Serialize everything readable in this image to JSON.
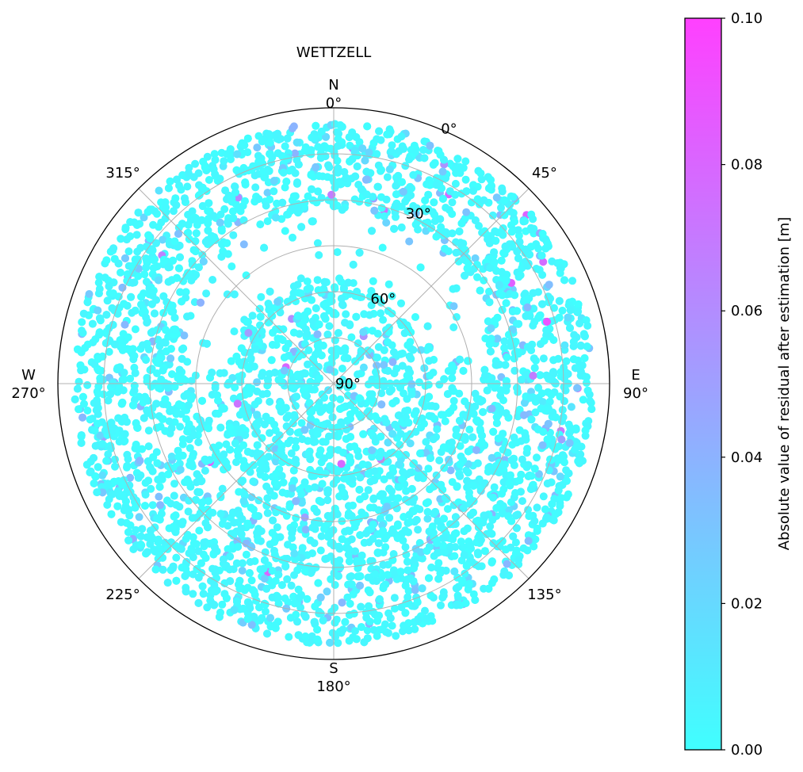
{
  "chart_data": {
    "type": "scatter",
    "subtype": "polar skyplot",
    "title": "WETTZELL",
    "theta_direction": "clockwise",
    "theta_zero": "north",
    "azimuth_ticks": [
      {
        "deg": 0,
        "text": "0°",
        "compass": "N"
      },
      {
        "deg": 45,
        "text": "45°"
      },
      {
        "deg": 90,
        "text": "90°",
        "compass": "E"
      },
      {
        "deg": 135,
        "text": "135°"
      },
      {
        "deg": 180,
        "text": "180°",
        "compass": "S"
      },
      {
        "deg": 225,
        "text": "225°"
      },
      {
        "deg": 270,
        "text": "270°",
        "compass": "W"
      },
      {
        "deg": 315,
        "text": "315°"
      }
    ],
    "elevation_ticks": [
      {
        "deg": 0,
        "text": "0°"
      },
      {
        "deg": 30,
        "text": "30°"
      },
      {
        "deg": 60,
        "text": "60°"
      },
      {
        "deg": 90,
        "text": "90°"
      }
    ],
    "elevation_range": [
      90,
      0
    ],
    "elevation_cutoff": 5,
    "grid": true,
    "colorbar": {
      "label": "Absolute value of residual after estimation [m]",
      "range": [
        0,
        0.1
      ],
      "ticks": [
        "0.00",
        "0.02",
        "0.04",
        "0.06",
        "0.08",
        "0.10"
      ],
      "colormap": "cool",
      "color_low": "#40ffff",
      "color_high": "#ff40ff"
    },
    "coverage_gaps": [
      {
        "azimuth": 0,
        "elevation_min": 48,
        "elevation_max": 55
      },
      {
        "azimuth": 0,
        "elevation_min": 33,
        "elevation_max": 50
      }
    ],
    "north_hole": {
      "azimuth": 0,
      "elevation": 40,
      "radius_deg": 3
    },
    "dominant_value": 0.005,
    "point_count_estimate": 6000
  }
}
